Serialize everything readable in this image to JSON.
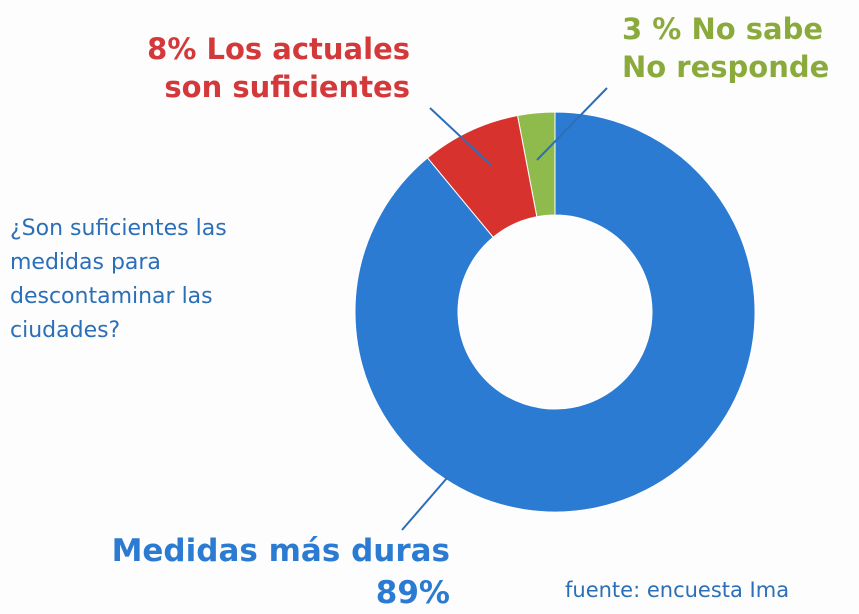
{
  "chart_data": {
    "type": "donut",
    "title": "¿Son suficientes las medidas para descontaminar las ciudades?",
    "categories": [
      "Medidas más duras",
      "Los actuales son suficientes",
      "No sabe No responde"
    ],
    "values": [
      89,
      8,
      3
    ],
    "value_labels": [
      "89%",
      "8%",
      "3 %"
    ],
    "colors": [
      "#2b7bd2",
      "#d8322f",
      "#8fbb4c"
    ],
    "source": "fuente: encuesta Ima"
  }
}
